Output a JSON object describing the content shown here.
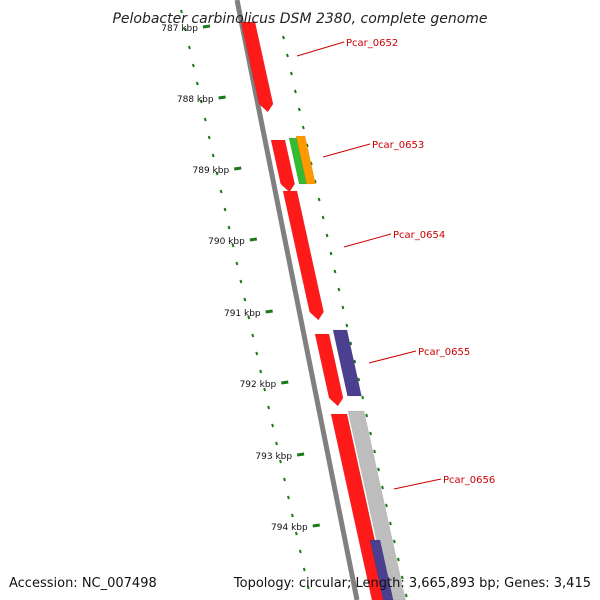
{
  "title": "Pelobacter carbinolicus DSM 2380, complete genome",
  "accession_text": "Accession: NC_007498",
  "summary_text": "Topology: circular; Length: 3,665,893 bp; Genes: 3,415",
  "colors": {
    "backbone": "#808080",
    "tick": "#1a7a1a",
    "gene_label": "#cc0000",
    "gene_red": "#ff1a1a",
    "gene_purple": "#4b3f8f",
    "gene_green": "#33bb33",
    "gene_orange": "#ff9900",
    "gene_gray": "#bdbdbd"
  },
  "kbp_ticks": [
    "787 kbp",
    "788 kbp",
    "789 kbp",
    "790 kbp",
    "791 kbp",
    "792 kbp",
    "793 kbp",
    "794 kbp"
  ],
  "genes": [
    {
      "label": "Pcar_0652"
    },
    {
      "label": "Pcar_0653"
    },
    {
      "label": "Pcar_0654"
    },
    {
      "label": "Pcar_0655"
    },
    {
      "label": "Pcar_0656"
    }
  ]
}
